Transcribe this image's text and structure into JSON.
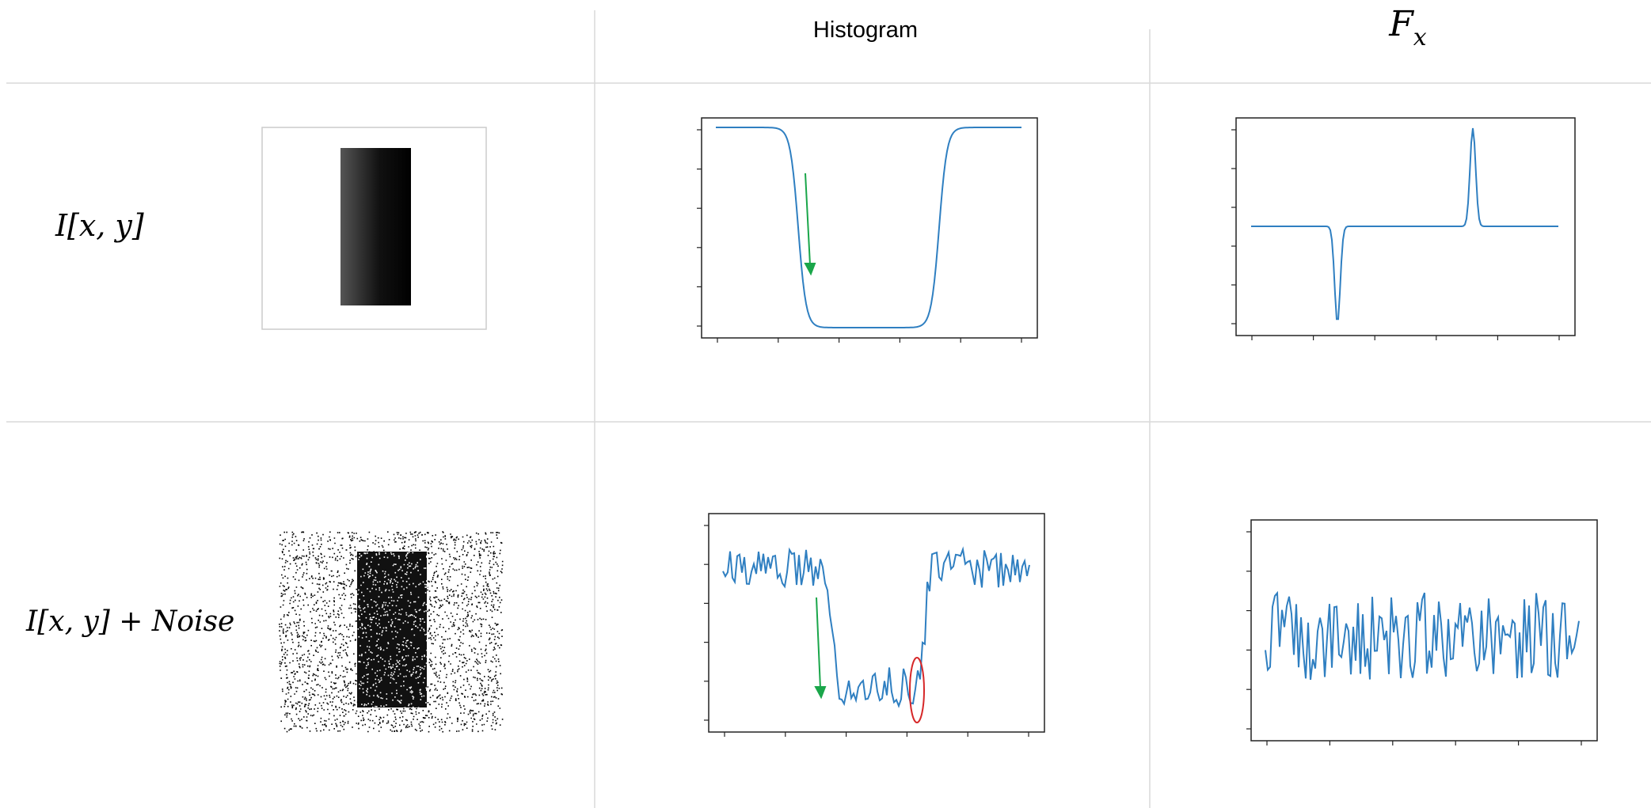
{
  "header": {
    "histogram": "Histogram",
    "fx": {
      "base": "F",
      "sub": "x"
    }
  },
  "rows": [
    {
      "label": "I[x, y]"
    },
    {
      "label": "I[x, y] + Noise"
    }
  ]
}
